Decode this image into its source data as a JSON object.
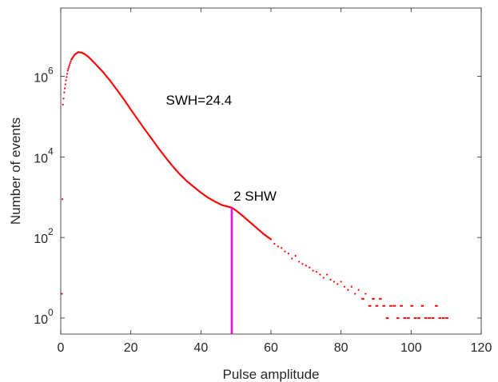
{
  "chart_data": {
    "type": "scatter",
    "title": "",
    "xlabel": "Pulse amplitude",
    "ylabel": "Number of events",
    "xlim": [
      0,
      120
    ],
    "ylim": [
      0.4,
      50000000
    ],
    "y_scale": "log",
    "grid": false,
    "x_ticks": [
      "0",
      "20",
      "40",
      "60",
      "80",
      "100",
      "120"
    ],
    "y_ticks": [
      {
        "value": 1,
        "base": "10",
        "exp": "0"
      },
      {
        "value": 100,
        "base": "10",
        "exp": "2"
      },
      {
        "value": 10000,
        "base": "10",
        "exp": "4"
      },
      {
        "value": 1000000,
        "base": "10",
        "exp": "6"
      }
    ],
    "series": [
      {
        "color": "#ff0000",
        "marker": "dot",
        "main_curve": {
          "x": [
            0.3,
            0.6,
            1,
            1.5,
            2,
            3,
            4,
            5,
            6,
            7,
            8,
            10,
            12,
            14,
            16,
            18,
            20,
            22,
            24,
            26,
            28,
            30,
            32,
            34,
            36,
            38,
            40,
            42,
            44,
            46,
            48.8,
            50,
            52,
            54,
            56,
            58,
            60
          ],
          "y": [
            4,
            200000,
            400000,
            800000,
            1400000,
            2600000,
            3500000,
            4000000,
            3900000,
            3500000,
            3000000,
            2000000,
            1300000,
            800000,
            470000,
            270000,
            150000,
            85000,
            48000,
            28000,
            16000,
            9500,
            5800,
            3700,
            2500,
            1800,
            1300,
            980,
            780,
            640,
            550,
            470,
            340,
            240,
            170,
            120,
            90
          ]
        },
        "tail": {
          "x": [
            61,
            62,
            63,
            64,
            65,
            66,
            67,
            68,
            69,
            70,
            71,
            72,
            73,
            74,
            75,
            76,
            77,
            78,
            79,
            80,
            81,
            82,
            83,
            84,
            85,
            86,
            87,
            88,
            89,
            90,
            91,
            92,
            93,
            94,
            95,
            96,
            97,
            98,
            99,
            100,
            101,
            102,
            103,
            104,
            105,
            106,
            107,
            108,
            109,
            110
          ],
          "y": [
            70,
            60,
            55,
            45,
            40,
            30,
            35,
            25,
            22,
            20,
            18,
            15,
            14,
            12,
            10,
            12,
            9,
            8,
            7,
            8,
            6,
            5,
            6,
            4,
            5,
            3,
            4,
            2,
            3,
            2,
            3,
            2,
            1,
            2,
            2,
            1,
            2,
            1,
            1,
            2,
            1,
            1,
            2,
            1,
            1,
            1,
            2,
            1,
            1,
            1
          ]
        }
      }
    ],
    "threshold_line": {
      "x": 48.8,
      "y_top": 550,
      "color": "#ff00ff"
    },
    "annotations": [
      {
        "text": "SWH=24.4",
        "x": 30,
        "y": 200000
      },
      {
        "text": "2 SHW",
        "x": 49.3,
        "y": 820
      }
    ]
  }
}
